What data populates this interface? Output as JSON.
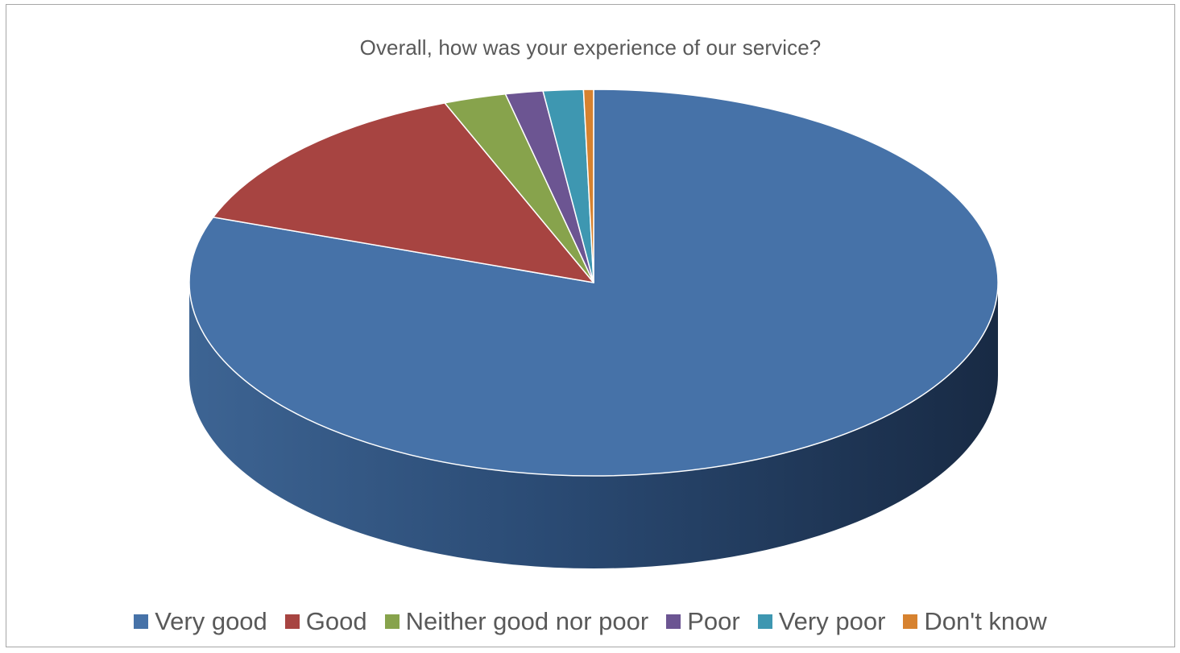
{
  "chart_data": {
    "type": "pie",
    "title": "Overall, how was your experience of our service?",
    "categories": [
      "Very good",
      "Good",
      "Neither good nor poor",
      "Poor",
      "Very poor",
      "Don't know"
    ],
    "values": [
      80.5,
      13.5,
      2.5,
      1.5,
      1.6,
      0.4
    ],
    "colors": [
      "#4672a8",
      "#a74441",
      "#87a34c",
      "#6c5592",
      "#3e97b1",
      "#d7822f"
    ],
    "legend_position": "bottom",
    "style": "3d"
  }
}
